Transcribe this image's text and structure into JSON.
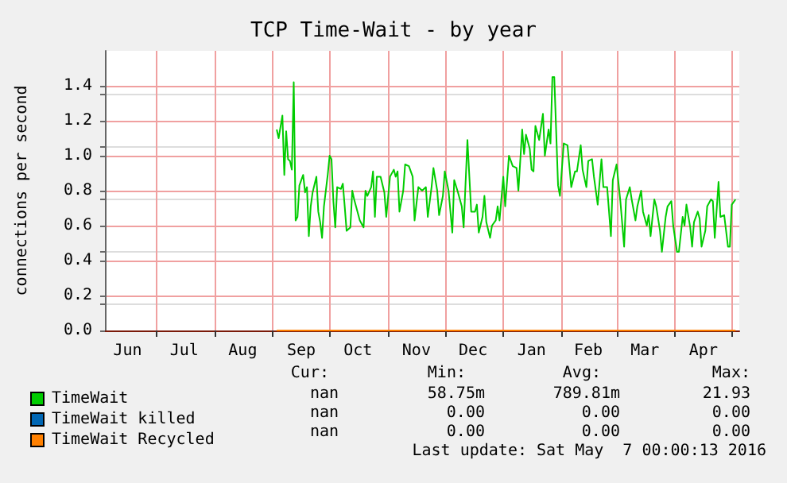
{
  "chart_data": {
    "type": "line",
    "title": "TCP Time-Wait - by year",
    "ylabel": "connections per second",
    "xlim": [
      "2015-06-04",
      "2016-05-05"
    ],
    "ylim": [
      0,
      1.6
    ],
    "yticks": [
      {
        "value": 0,
        "label": "0.0"
      },
      {
        "value": 0.2,
        "label": "0.2"
      },
      {
        "value": 0.4,
        "label": "0.4"
      },
      {
        "value": 0.6,
        "label": "0.6"
      },
      {
        "value": 0.8,
        "label": "0.8"
      },
      {
        "value": 1,
        "label": "1.0"
      },
      {
        "value": 1.2,
        "label": "1.2"
      },
      {
        "value": 1.4,
        "label": "1.4"
      }
    ],
    "xticks": [
      {
        "value": "2015-06-16",
        "label": "Jun"
      },
      {
        "value": "2015-07-16",
        "label": "Jul"
      },
      {
        "value": "2015-08-16",
        "label": "Aug"
      },
      {
        "value": "2015-09-16",
        "label": "Sep"
      },
      {
        "value": "2015-10-16",
        "label": "Oct"
      },
      {
        "value": "2015-11-16",
        "label": "Nov"
      },
      {
        "value": "2015-12-16",
        "label": "Dec"
      },
      {
        "value": "2016-01-16",
        "label": "Jan"
      },
      {
        "value": "2016-02-15",
        "label": "Feb"
      },
      {
        "value": "2016-03-16",
        "label": "Mar"
      },
      {
        "value": "2016-04-16",
        "label": "Apr"
      },
      {
        "value": "2015-07-01",
        "label": null
      },
      {
        "value": "2015-08-01",
        "label": null
      },
      {
        "value": "2015-09-01",
        "label": null
      },
      {
        "value": "2015-10-01",
        "label": null
      },
      {
        "value": "2015-11-01",
        "label": null
      },
      {
        "value": "2015-12-01",
        "label": null
      },
      {
        "value": "2016-01-01",
        "label": null
      },
      {
        "value": "2016-02-01",
        "label": null
      },
      {
        "value": "2016-03-01",
        "label": null
      },
      {
        "value": "2016-04-01",
        "label": null
      },
      {
        "value": "2016-05-01",
        "label": null
      }
    ],
    "grid": true,
    "legend": "bottom left",
    "marker": "none",
    "line_style": "solid",
    "series": [
      {
        "name": "TimeWait",
        "color": "#00cc00",
        "x": [
          "2015-09-03",
          "2015-09-04",
          "2015-09-06",
          "2015-09-07",
          "2015-09-08",
          "2015-09-09",
          "2015-09-10",
          "2015-09-11",
          "2015-09-12",
          "2015-09-13",
          "2015-09-14",
          "2015-09-15",
          "2015-09-17",
          "2015-09-18",
          "2015-09-19",
          "2015-09-20",
          "2015-09-21",
          "2015-09-22",
          "2015-09-24",
          "2015-09-25",
          "2015-09-26",
          "2015-09-27",
          "2015-09-28",
          "2015-09-30",
          "2015-10-01",
          "2015-10-02",
          "2015-10-03",
          "2015-10-04",
          "2015-10-05",
          "2015-10-07",
          "2015-10-08",
          "2015-10-09",
          "2015-10-10",
          "2015-10-12",
          "2015-10-13",
          "2015-10-14",
          "2015-10-15",
          "2015-10-17",
          "2015-10-19",
          "2015-10-20",
          "2015-10-21",
          "2015-10-23",
          "2015-10-24",
          "2015-10-25",
          "2015-10-26",
          "2015-10-28",
          "2015-10-30",
          "2015-10-31",
          "2015-11-02",
          "2015-11-04",
          "2015-11-05",
          "2015-11-06",
          "2015-11-07",
          "2015-11-09",
          "2015-11-10",
          "2015-11-12",
          "2015-11-14",
          "2015-11-15",
          "2015-11-17",
          "2015-11-19",
          "2015-11-21",
          "2015-11-22",
          "2015-11-24",
          "2015-11-25",
          "2015-11-27",
          "2015-11-28",
          "2015-11-30",
          "2015-12-01",
          "2015-12-03",
          "2015-12-05",
          "2015-12-06",
          "2015-12-08",
          "2015-12-10",
          "2015-12-11",
          "2015-12-13",
          "2015-12-15",
          "2015-12-17",
          "2015-12-18",
          "2015-12-19",
          "2015-12-21",
          "2015-12-22",
          "2015-12-23",
          "2015-12-25",
          "2015-12-26",
          "2015-12-28",
          "2015-12-29",
          "2015-12-30",
          "2016-01-01",
          "2016-01-02",
          "2016-01-04",
          "2016-01-06",
          "2016-01-08",
          "2016-01-09",
          "2016-01-11",
          "2016-01-12",
          "2016-01-13",
          "2016-01-15",
          "2016-01-16",
          "2016-01-17",
          "2016-01-18",
          "2016-01-20",
          "2016-01-22",
          "2016-01-23",
          "2016-01-25",
          "2016-01-26",
          "2016-01-27",
          "2016-01-28",
          "2016-01-30",
          "2016-01-31",
          "2016-02-02",
          "2016-02-04",
          "2016-02-06",
          "2016-02-08",
          "2016-02-09",
          "2016-02-11",
          "2016-02-12",
          "2016-02-14",
          "2016-02-15",
          "2016-02-17",
          "2016-02-18",
          "2016-02-20",
          "2016-02-22",
          "2016-02-23",
          "2016-02-25",
          "2016-02-27",
          "2016-02-28",
          "2016-03-01",
          "2016-03-03",
          "2016-03-05",
          "2016-03-06",
          "2016-03-08",
          "2016-03-09",
          "2016-03-11",
          "2016-03-12",
          "2016-03-14",
          "2016-03-15",
          "2016-03-17",
          "2016-03-18",
          "2016-03-19",
          "2016-03-21",
          "2016-03-22",
          "2016-03-24",
          "2016-03-25",
          "2016-03-27",
          "2016-03-28",
          "2016-03-30",
          "2016-03-31",
          "2016-04-02",
          "2016-04-03",
          "2016-04-05",
          "2016-04-06",
          "2016-04-07",
          "2016-04-09",
          "2016-04-10",
          "2016-04-11",
          "2016-04-13",
          "2016-04-14",
          "2016-04-15",
          "2016-04-17",
          "2016-04-18",
          "2016-04-20",
          "2016-04-21",
          "2016-04-22",
          "2016-04-24",
          "2016-04-25",
          "2016-04-27",
          "2016-04-29",
          "2016-04-30",
          "2016-05-01",
          "2016-05-03"
        ],
        "values": [
          1.15,
          1.1,
          1.23,
          0.89,
          1.14,
          0.98,
          0.97,
          0.92,
          1.42,
          0.63,
          0.65,
          0.83,
          0.89,
          0.79,
          0.82,
          0.54,
          0.71,
          0.79,
          0.88,
          0.68,
          0.62,
          0.53,
          0.71,
          0.89,
          1.0,
          0.98,
          0.74,
          0.59,
          0.82,
          0.81,
          0.84,
          0.71,
          0.57,
          0.59,
          0.8,
          0.75,
          0.71,
          0.63,
          0.59,
          0.8,
          0.77,
          0.82,
          0.91,
          0.65,
          0.88,
          0.88,
          0.79,
          0.65,
          0.88,
          0.92,
          0.88,
          0.91,
          0.68,
          0.8,
          0.95,
          0.94,
          0.88,
          0.63,
          0.82,
          0.8,
          0.82,
          0.65,
          0.82,
          0.93,
          0.8,
          0.66,
          0.77,
          0.91,
          0.8,
          0.56,
          0.86,
          0.79,
          0.71,
          0.59,
          1.09,
          0.68,
          0.68,
          0.72,
          0.56,
          0.65,
          0.77,
          0.62,
          0.53,
          0.6,
          0.63,
          0.71,
          0.63,
          0.88,
          0.71,
          1.0,
          0.94,
          0.93,
          0.8,
          1.15,
          1.01,
          1.12,
          1.04,
          0.92,
          0.91,
          1.17,
          1.09,
          1.24,
          1.0,
          1.15,
          1.07,
          1.45,
          1.45,
          0.83,
          0.77,
          1.07,
          1.06,
          0.82,
          0.91,
          0.91,
          1.06,
          0.92,
          0.82,
          0.97,
          0.98,
          0.88,
          0.72,
          0.98,
          0.82,
          0.82,
          0.54,
          0.86,
          0.95,
          0.74,
          0.48,
          0.75,
          0.82,
          0.75,
          0.63,
          0.71,
          0.8,
          0.68,
          0.6,
          0.66,
          0.54,
          0.75,
          0.71,
          0.57,
          0.45,
          0.65,
          0.71,
          0.74,
          0.6,
          0.45,
          0.45,
          0.65,
          0.6,
          0.72,
          0.59,
          0.48,
          0.62,
          0.68,
          0.64,
          0.48,
          0.57,
          0.71,
          0.75,
          0.74,
          0.53,
          0.85,
          0.65,
          0.66,
          0.48,
          0.48,
          0.72,
          0.75
        ]
      },
      {
        "name": "TimeWait killed",
        "color": "#0066b3"
      },
      {
        "name": "TimeWait Recycled",
        "color": "#ff8000",
        "x": [
          "2015-09-03",
          "2016-05-03"
        ],
        "values": [
          0,
          0
        ]
      }
    ],
    "annotations": [
      "Cur:",
      "Min:",
      "Avg:",
      "Max:",
      "nan",
      "58.75m",
      "789.81m",
      "21.93",
      "nan",
      "0.00",
      "0.00",
      "0.00",
      "nan",
      "0.00",
      "0.00",
      "0.00",
      "Last update: Sat May  7 00:00:13 2016"
    ]
  }
}
